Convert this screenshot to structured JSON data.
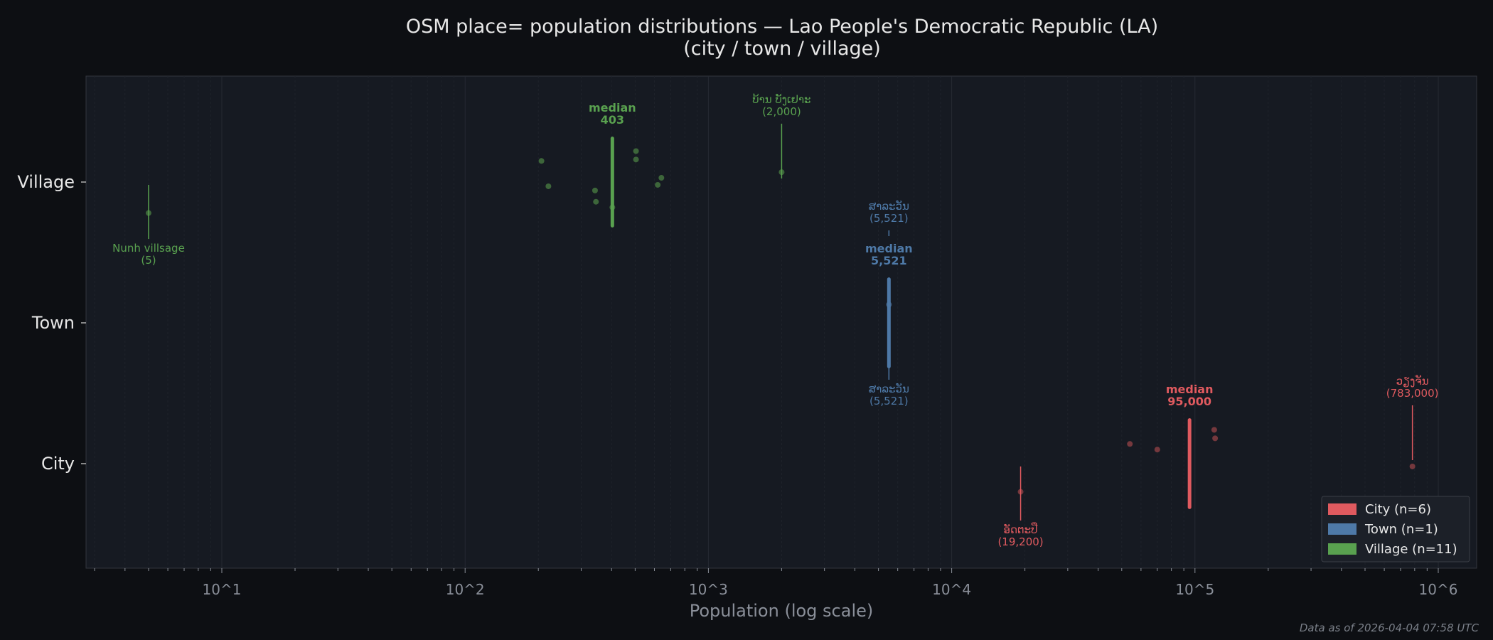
{
  "chart_data": {
    "type": "scatter",
    "title": "OSM place= population distributions — Lao People's Democratic Republic (LA)",
    "subtitle": "(city / town / village)",
    "xlabel": "Population (log scale)",
    "ylabel": "",
    "xscale": "log",
    "xlim": [
      2.8,
      1350000
    ],
    "xticks": [
      {
        "value": 10,
        "label": "10^1"
      },
      {
        "value": 100,
        "label": "10^2"
      },
      {
        "value": 1000,
        "label": "10^3"
      },
      {
        "value": 10000,
        "label": "10^4"
      },
      {
        "value": 100000,
        "label": "10^5"
      },
      {
        "value": 1000000,
        "label": "10^6"
      }
    ],
    "grid": "vertical log gridlines",
    "legend_position": "bottom-right",
    "categories": [
      "Village",
      "Town",
      "City"
    ],
    "series": [
      {
        "key": "city",
        "label": "City",
        "legend": "City  (n=6)",
        "color": "#e05a5f",
        "values": [
          19200,
          54000,
          70000,
          120000,
          121000,
          783000
        ],
        "median": 95000,
        "median_label": "median",
        "median_value_text": "95,000",
        "annotations": [
          {
            "name": "ອັດຕະປື",
            "value": 19200,
            "value_text": "(19,200)",
            "placement": "below"
          },
          {
            "name": "ວຽງຈັນ",
            "value": 783000,
            "value_text": "(783,000)",
            "placement": "above"
          }
        ]
      },
      {
        "key": "town",
        "label": "Town",
        "legend": "Town  (n=1)",
        "color": "#4e79a7",
        "values": [
          5521
        ],
        "median": 5521,
        "median_label": "median",
        "median_value_text": "5,521",
        "annotations": [
          {
            "name": "ສາລະວັນ",
            "value": 5521,
            "value_text": "(5,521)",
            "placement": "above"
          },
          {
            "name": "ສາລະວັນ",
            "value": 5521,
            "value_text": "(5,521)",
            "placement": "below"
          }
        ]
      },
      {
        "key": "village",
        "label": "Village",
        "legend": "Village  (n=11)",
        "color": "#59a14f",
        "values": [
          5,
          206,
          220,
          342,
          345,
          403,
          504,
          504,
          619,
          641,
          2000
        ],
        "median": 403,
        "median_label": "median",
        "median_value_text": "403",
        "annotations": [
          {
            "name": "Nunh villsage",
            "value": 5,
            "value_text": "(5)",
            "placement": "below"
          },
          {
            "name": "ບ້ານ ບັງເຢາະ",
            "value": 2000,
            "value_text": "(2,000)",
            "placement": "above"
          }
        ]
      }
    ]
  },
  "footer": {
    "data_as_of": "Data as of 2026-04-04 07:58 UTC"
  },
  "colors": {
    "background": "#0d0f13",
    "plot_background": "#161a22",
    "text": "#e8e8e8",
    "muted": "#8a8f99"
  }
}
